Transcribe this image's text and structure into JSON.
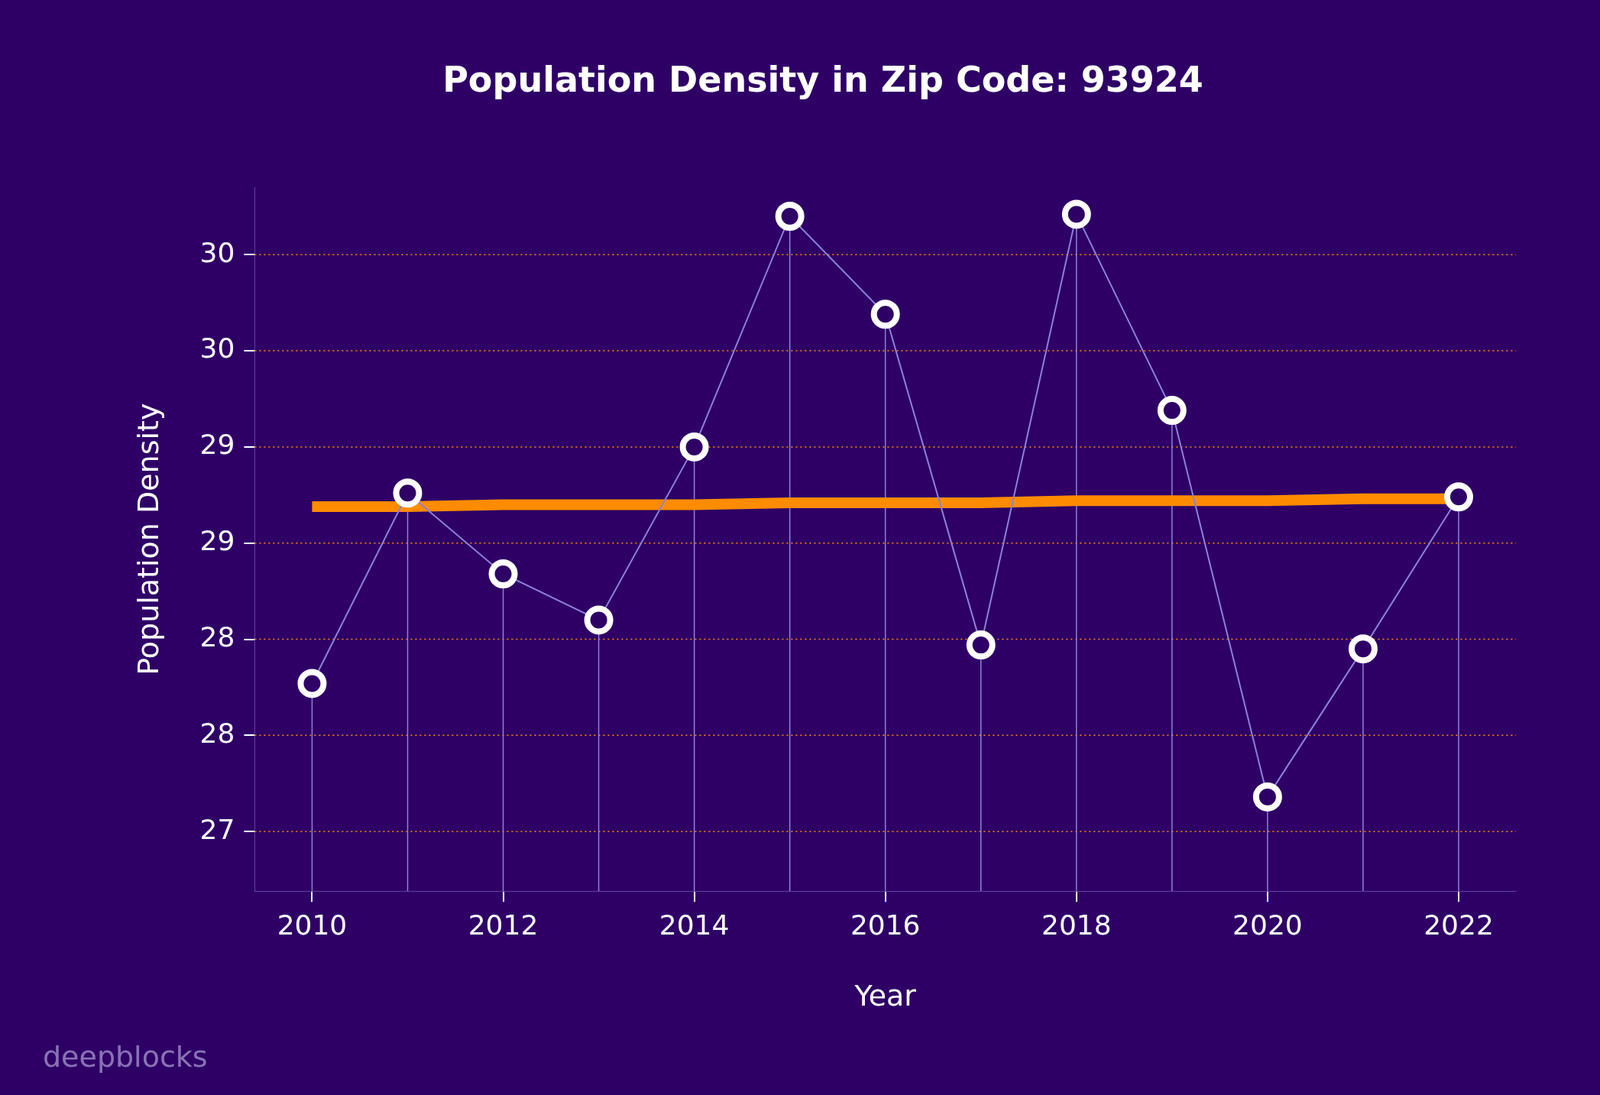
{
  "chart_data": {
    "type": "line",
    "title": "Population Density in Zip Code: 93924",
    "x_label": "Year",
    "y_label": "Population Density",
    "x": [
      2010,
      2011,
      2012,
      2013,
      2014,
      2015,
      2016,
      2017,
      2018,
      2019,
      2020,
      2021,
      2022
    ],
    "series": [
      {
        "color": "#8f80d8",
        "marker": "circle",
        "line_style": "solid",
        "values": [
          28.02,
          29.01,
          28.59,
          28.35,
          29.25,
          30.45,
          29.94,
          28.22,
          30.46,
          29.44,
          27.43,
          28.2,
          28.99
        ]
      },
      {
        "color": "#ff8c00",
        "marker": "none",
        "line_style": "solid",
        "values": [
          28.94,
          28.94,
          28.95,
          28.95,
          28.95,
          28.96,
          28.96,
          28.96,
          28.97,
          28.97,
          28.97,
          28.98,
          28.98
        ]
      }
    ],
    "xlim": [
      2009.4,
      2022.6
    ],
    "xticks": [
      2010,
      2012,
      2014,
      2016,
      2018,
      2020,
      2022
    ],
    "ylim": [
      26.94,
      30.6
    ],
    "yticks": [
      {
        "value": 27.25,
        "label": "27"
      },
      {
        "value": 27.75,
        "label": "28"
      },
      {
        "value": 28.25,
        "label": "28"
      },
      {
        "value": 28.75,
        "label": "29"
      },
      {
        "value": 29.25,
        "label": "29"
      },
      {
        "value": 29.75,
        "label": "30"
      },
      {
        "value": 30.25,
        "label": "30"
      }
    ],
    "grid": true,
    "annotations": [
      "deepblocks"
    ]
  }
}
